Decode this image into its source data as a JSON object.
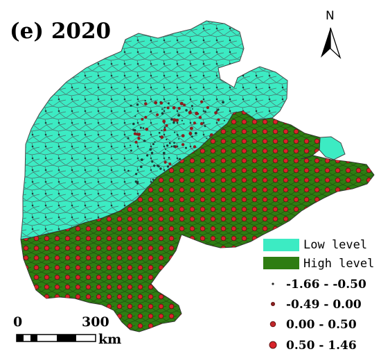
{
  "title": "(e) 2020",
  "north_arrow": {
    "label": "N"
  },
  "colors": {
    "low_level": "#3CEBC3",
    "high_level": "#2E7D12",
    "border": "#555555",
    "dot_fill": "#D9232A",
    "dot_edge": "#5C1111"
  },
  "legend": {
    "fills": [
      {
        "label": "Low level",
        "color": "#3CEBC3"
      },
      {
        "label": "High level",
        "color": "#2E7D12"
      }
    ],
    "classes": [
      {
        "label": "-1.66 - -0.50"
      },
      {
        "label": "-0.49 - 0.00"
      },
      {
        "label": "0.00 - 0.50"
      },
      {
        "label": "0.50 - 1.46"
      }
    ]
  },
  "scale_bar": {
    "start_label": "0",
    "mid_label": "300",
    "unit": "km"
  }
}
